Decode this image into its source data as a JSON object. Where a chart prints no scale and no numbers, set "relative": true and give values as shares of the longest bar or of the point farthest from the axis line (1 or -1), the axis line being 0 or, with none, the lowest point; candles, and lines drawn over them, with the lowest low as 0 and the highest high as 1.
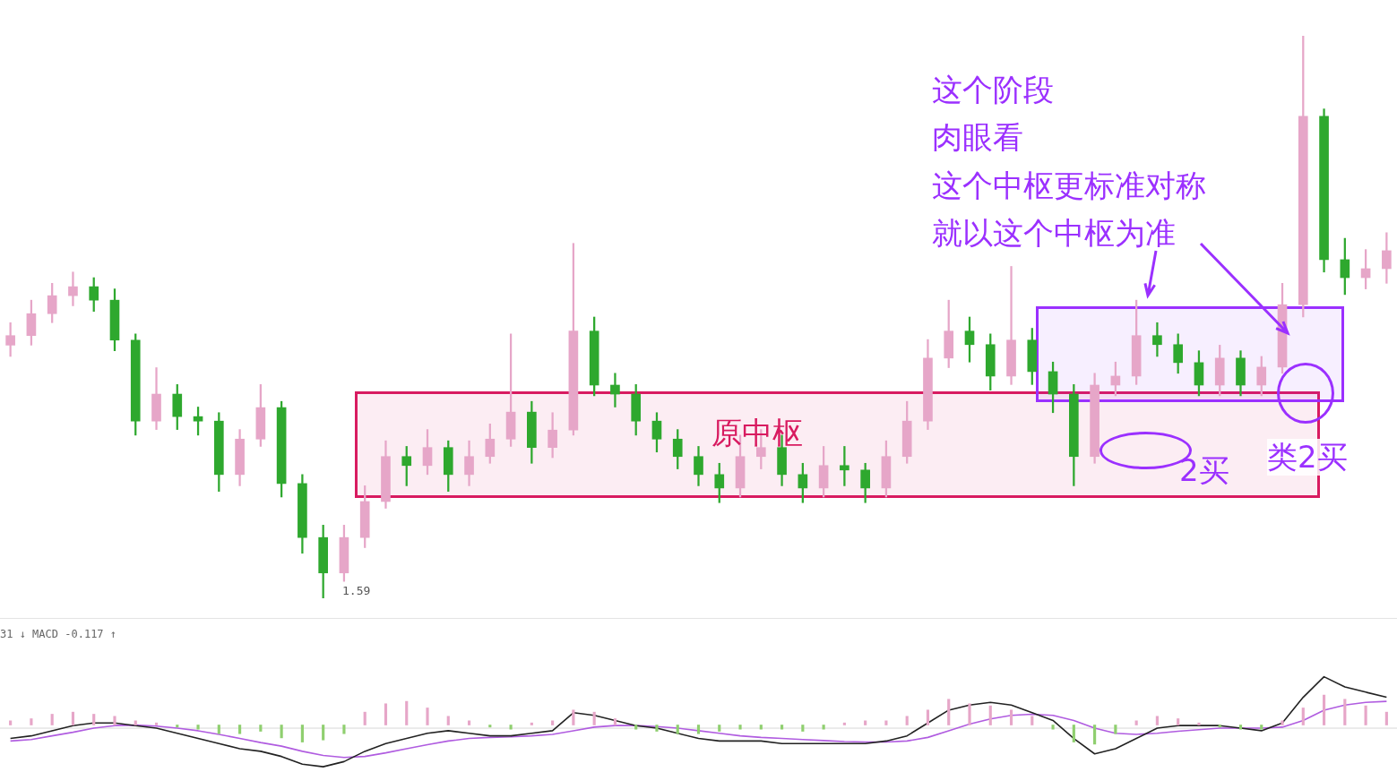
{
  "chart_data": [
    {
      "type": "candlestick",
      "relative": true,
      "categories": [
        null,
        null,
        null,
        null,
        null,
        null,
        null,
        null,
        null,
        null,
        null,
        null,
        null,
        null,
        null,
        null,
        null,
        null,
        null,
        null,
        null,
        null,
        null,
        null,
        null,
        null,
        null,
        null,
        null,
        null,
        null,
        null,
        null,
        null,
        null,
        null,
        null,
        null,
        null,
        null,
        null,
        null,
        null,
        null,
        null,
        null,
        null,
        null,
        null,
        null,
        null,
        null,
        null,
        null,
        null,
        null,
        null,
        null,
        null,
        null,
        null,
        null,
        null,
        null,
        null,
        null,
        null
      ],
      "ohlc": [
        [
          0.45,
          0.49,
          0.43,
          0.467
        ],
        [
          0.467,
          0.53,
          0.45,
          0.506
        ],
        [
          0.506,
          0.56,
          0.49,
          0.538
        ],
        [
          0.538,
          0.58,
          0.52,
          0.554
        ],
        [
          0.554,
          0.57,
          0.51,
          0.53
        ],
        [
          0.53,
          0.55,
          0.44,
          0.459
        ],
        [
          0.459,
          0.47,
          0.29,
          0.315
        ],
        [
          0.315,
          0.41,
          0.3,
          0.363
        ],
        [
          0.363,
          0.38,
          0.3,
          0.323
        ],
        [
          0.323,
          0.34,
          0.29,
          0.315
        ],
        [
          0.315,
          0.33,
          0.19,
          0.22
        ],
        [
          0.22,
          0.3,
          0.2,
          0.283
        ],
        [
          0.283,
          0.38,
          0.27,
          0.339
        ],
        [
          0.339,
          0.35,
          0.18,
          0.204
        ],
        [
          0.204,
          0.22,
          0.08,
          0.108
        ],
        [
          0.108,
          0.13,
          0,
          0.045
        ],
        [
          0.045,
          0.13,
          0.03,
          0.108
        ],
        [
          0.108,
          0.2,
          0.09,
          0.172
        ],
        [
          0.172,
          0.28,
          0.16,
          0.252
        ],
        [
          0.252,
          0.27,
          0.2,
          0.236
        ],
        [
          0.236,
          0.3,
          0.22,
          0.268
        ],
        [
          0.268,
          0.28,
          0.19,
          0.22
        ],
        [
          0.22,
          0.28,
          0.2,
          0.252
        ],
        [
          0.252,
          0.31,
          0.24,
          0.283
        ],
        [
          0.283,
          0.47,
          0.27,
          0.331
        ],
        [
          0.331,
          0.35,
          0.24,
          0.268
        ],
        [
          0.268,
          0.33,
          0.25,
          0.299
        ],
        [
          0.299,
          0.631,
          0.29,
          0.475
        ],
        [
          0.475,
          0.5,
          0.36,
          0.379
        ],
        [
          0.379,
          0.4,
          0.34,
          0.363
        ],
        [
          0.363,
          0.38,
          0.29,
          0.315
        ],
        [
          0.315,
          0.33,
          0.26,
          0.283
        ],
        [
          0.283,
          0.3,
          0.23,
          0.252
        ],
        [
          0.252,
          0.27,
          0.2,
          0.22
        ],
        [
          0.22,
          0.24,
          0.17,
          0.196
        ],
        [
          0.196,
          0.29,
          0.18,
          0.252
        ],
        [
          0.252,
          0.3,
          0.23,
          0.268
        ],
        [
          0.268,
          0.29,
          0.2,
          0.22
        ],
        [
          0.22,
          0.24,
          0.17,
          0.196
        ],
        [
          0.196,
          0.27,
          0.18,
          0.236
        ],
        [
          0.236,
          0.27,
          0.2,
          0.228
        ],
        [
          0.228,
          0.24,
          0.17,
          0.196
        ],
        [
          0.196,
          0.28,
          0.18,
          0.252
        ],
        [
          0.252,
          0.35,
          0.24,
          0.315
        ],
        [
          0.315,
          0.46,
          0.3,
          0.427
        ],
        [
          0.427,
          0.53,
          0.41,
          0.475
        ],
        [
          0.475,
          0.5,
          0.42,
          0.451
        ],
        [
          0.451,
          0.47,
          0.37,
          0.395
        ],
        [
          0.395,
          0.59,
          0.38,
          0.459
        ],
        [
          0.459,
          0.48,
          0.38,
          0.403
        ],
        [
          0.403,
          0.42,
          0.33,
          0.363
        ],
        [
          0.363,
          0.38,
          0.2,
          0.252
        ],
        [
          0.252,
          0.4,
          0.24,
          0.379
        ],
        [
          0.379,
          0.42,
          0.36,
          0.395
        ],
        [
          0.395,
          0.53,
          0.38,
          0.467
        ],
        [
          0.467,
          0.49,
          0.43,
          0.451
        ],
        [
          0.451,
          0.47,
          0.4,
          0.419
        ],
        [
          0.419,
          0.44,
          0.36,
          0.379
        ],
        [
          0.379,
          0.45,
          0.36,
          0.427
        ],
        [
          0.427,
          0.44,
          0.36,
          0.379
        ],
        [
          0.379,
          0.43,
          0.36,
          0.411
        ],
        [
          0.411,
          0.56,
          0.4,
          0.522
        ],
        [
          0.522,
          1,
          0.5,
          0.857
        ],
        [
          0.857,
          0.87,
          0.58,
          0.602
        ],
        [
          0.602,
          0.64,
          0.54,
          0.57
        ],
        [
          0.57,
          0.62,
          0.55,
          0.586
        ],
        [
          0.586,
          0.65,
          0.56,
          0.618
        ]
      ],
      "colors": [
        "#e6a6c8",
        "#e6a6c8",
        "#e6a6c8",
        "#e6a6c8",
        "#2ea82e",
        "#2ea82e",
        "#2ea82e",
        "#e6a6c8",
        "#2ea82e",
        "#2ea82e",
        "#2ea82e",
        "#e6a6c8",
        "#e6a6c8",
        "#2ea82e",
        "#2ea82e",
        "#2ea82e",
        "#e6a6c8",
        "#e6a6c8",
        "#e6a6c8",
        "#2ea82e",
        "#e6a6c8",
        "#2ea82e",
        "#e6a6c8",
        "#e6a6c8",
        "#e6a6c8",
        "#2ea82e",
        "#e6a6c8",
        "#e6a6c8",
        "#2ea82e",
        "#2ea82e",
        "#2ea82e",
        "#2ea82e",
        "#2ea82e",
        "#2ea82e",
        "#2ea82e",
        "#e6a6c8",
        "#e6a6c8",
        "#2ea82e",
        "#2ea82e",
        "#e6a6c8",
        "#2ea82e",
        "#2ea82e",
        "#e6a6c8",
        "#e6a6c8",
        "#e6a6c8",
        "#e6a6c8",
        "#2ea82e",
        "#2ea82e",
        "#e6a6c8",
        "#2ea82e",
        "#2ea82e",
        "#2ea82e",
        "#e6a6c8",
        "#e6a6c8",
        "#e6a6c8",
        "#2ea82e",
        "#2ea82e",
        "#2ea82e",
        "#e6a6c8",
        "#2ea82e",
        "#e6a6c8",
        "#e6a6c8",
        "#e6a6c8",
        "#2ea82e",
        "#2ea82e",
        "#e6a6c8",
        "#e6a6c8"
      ],
      "bands": [
        {
          "axis": "y",
          "from": 0.178,
          "to": 0.368,
          "label": "原中枢",
          "color": "#d81b60"
        },
        {
          "axis": "y",
          "from": 0.349,
          "to": 0.519,
          "color": "#9b30ff"
        }
      ],
      "annotations": [
        "这个阶段",
        "肉眼看",
        "这个中枢更标准对称",
        "就以这个中枢为准",
        "2买",
        "类2买",
        "1.59"
      ]
    },
    {
      "type": "line",
      "relative": true,
      "title": "31 ↓ MACD -0.117 ↑",
      "categories": [
        null,
        null,
        null,
        null,
        null,
        null,
        null,
        null,
        null,
        null,
        null,
        null,
        null,
        null,
        null,
        null,
        null,
        null,
        null,
        null,
        null,
        null,
        null,
        null,
        null,
        null,
        null,
        null,
        null,
        null,
        null,
        null,
        null,
        null,
        null,
        null,
        null,
        null,
        null,
        null,
        null,
        null,
        null,
        null,
        null,
        null,
        null,
        null,
        null,
        null,
        null,
        null,
        null,
        null,
        null,
        null,
        null,
        null,
        null,
        null,
        null,
        null,
        null,
        null,
        null,
        null,
        null
      ],
      "series": [
        {
          "color": "#222222",
          "values": [
            -0.2,
            -0.15,
            -0.05,
            0.05,
            0.1,
            0.1,
            0.05,
            0,
            -0.1,
            -0.2,
            -0.3,
            -0.4,
            -0.45,
            -0.55,
            -0.7,
            -0.75,
            -0.65,
            -0.45,
            -0.3,
            -0.2,
            -0.1,
            -0.05,
            -0.1,
            -0.15,
            -0.15,
            -0.1,
            -0.05,
            0.3,
            0.25,
            0.15,
            0.05,
            0,
            -0.1,
            -0.2,
            -0.25,
            -0.25,
            -0.25,
            -0.3,
            -0.3,
            -0.3,
            -0.3,
            -0.3,
            -0.25,
            -0.15,
            0.1,
            0.35,
            0.45,
            0.5,
            0.45,
            0.3,
            0.15,
            -0.2,
            -0.5,
            -0.4,
            -0.2,
            0,
            0.05,
            0.05,
            0.05,
            0,
            -0.05,
            0.1,
            0.6,
            1,
            0.8,
            0.7,
            0.6
          ]
        },
        {
          "color": "#b05ce0",
          "values": [
            -0.25,
            -0.22,
            -0.15,
            -0.08,
            0,
            0.05,
            0.06,
            0.04,
            0,
            -0.05,
            -0.12,
            -0.2,
            -0.28,
            -0.35,
            -0.45,
            -0.53,
            -0.57,
            -0.55,
            -0.48,
            -0.4,
            -0.32,
            -0.25,
            -0.2,
            -0.18,
            -0.17,
            -0.15,
            -0.12,
            -0.05,
            0.02,
            0.05,
            0.05,
            0.03,
            0,
            -0.05,
            -0.1,
            -0.15,
            -0.18,
            -0.2,
            -0.22,
            -0.24,
            -0.26,
            -0.27,
            -0.27,
            -0.25,
            -0.18,
            -0.05,
            0.08,
            0.18,
            0.25,
            0.27,
            0.25,
            0.15,
            0,
            -0.1,
            -0.12,
            -0.1,
            -0.06,
            -0.03,
            0,
            0,
            0,
            0.02,
            0.15,
            0.35,
            0.45,
            0.5,
            0.52
          ]
        }
      ]
    },
    {
      "type": "bar",
      "relative": true,
      "categories": [
        null,
        null,
        null,
        null,
        null,
        null,
        null,
        null,
        null,
        null,
        null,
        null,
        null,
        null,
        null,
        null,
        null,
        null,
        null,
        null,
        null,
        null,
        null,
        null,
        null,
        null,
        null,
        null,
        null,
        null,
        null,
        null,
        null,
        null,
        null,
        null,
        null,
        null,
        null,
        null,
        null,
        null,
        null,
        null,
        null,
        null,
        null,
        null,
        null,
        null,
        null,
        null,
        null,
        null,
        null,
        null,
        null,
        null,
        null,
        null,
        null,
        null,
        null,
        null,
        null,
        null,
        null
      ],
      "values": [
        0.14,
        0.21,
        0.36,
        0.43,
        0.36,
        0.29,
        0.14,
        0.07,
        -0.07,
        -0.14,
        -0.29,
        -0.29,
        -0.21,
        -0.43,
        -0.57,
        -0.5,
        -0.29,
        0.43,
        0.71,
        0.79,
        0.57,
        0.29,
        0.14,
        -0.07,
        -0.14,
        0.07,
        0.14,
        0.5,
        0.43,
        0.21,
        -0.14,
        -0.21,
        -0.29,
        -0.29,
        -0.21,
        -0.14,
        -0.14,
        -0.14,
        -0.21,
        -0.14,
        0.07,
        0.14,
        0.14,
        0.29,
        0.5,
        0.86,
        0.71,
        0.64,
        0.5,
        0.29,
        -0.14,
        -0.57,
        -0.64,
        -0.29,
        0.14,
        0.29,
        0.21,
        0.07,
        -0.07,
        -0.14,
        -0.14,
        0.14,
        0.57,
        1,
        0.86,
        0.64,
        0.43
      ],
      "colors": [
        "#e6a6c8",
        "#e6a6c8",
        "#e6a6c8",
        "#e6a6c8",
        "#e6a6c8",
        "#e6a6c8",
        "#e6a6c8",
        "#e6a6c8",
        "#8fcf6f",
        "#8fcf6f",
        "#8fcf6f",
        "#8fcf6f",
        "#8fcf6f",
        "#8fcf6f",
        "#8fcf6f",
        "#8fcf6f",
        "#8fcf6f",
        "#e6a6c8",
        "#e6a6c8",
        "#e6a6c8",
        "#e6a6c8",
        "#e6a6c8",
        "#e6a6c8",
        "#8fcf6f",
        "#8fcf6f",
        "#e6a6c8",
        "#e6a6c8",
        "#e6a6c8",
        "#e6a6c8",
        "#e6a6c8",
        "#8fcf6f",
        "#8fcf6f",
        "#8fcf6f",
        "#8fcf6f",
        "#8fcf6f",
        "#8fcf6f",
        "#8fcf6f",
        "#8fcf6f",
        "#8fcf6f",
        "#8fcf6f",
        "#e6a6c8",
        "#e6a6c8",
        "#e6a6c8",
        "#e6a6c8",
        "#e6a6c8",
        "#e6a6c8",
        "#e6a6c8",
        "#e6a6c8",
        "#e6a6c8",
        "#e6a6c8",
        "#8fcf6f",
        "#8fcf6f",
        "#8fcf6f",
        "#8fcf6f",
        "#e6a6c8",
        "#e6a6c8",
        "#e6a6c8",
        "#e6a6c8",
        "#8fcf6f",
        "#8fcf6f",
        "#8fcf6f",
        "#e6a6c8",
        "#e6a6c8",
        "#e6a6c8",
        "#e6a6c8",
        "#e6a6c8",
        "#e6a6c8"
      ]
    }
  ]
}
